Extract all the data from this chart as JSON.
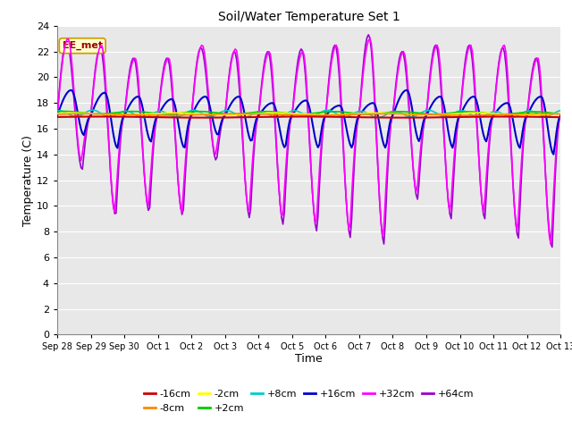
{
  "title": "Soil/Water Temperature Set 1",
  "xlabel": "Time",
  "ylabel": "Temperature (C)",
  "ylim": [
    0,
    24
  ],
  "yticks": [
    0,
    2,
    4,
    6,
    8,
    10,
    12,
    14,
    16,
    18,
    20,
    22,
    24
  ],
  "fig_bg_color": "#ffffff",
  "plot_bg_color": "#e8e8e8",
  "annotation_text": "EE_met",
  "annotation_bg": "#ffffcc",
  "annotation_border": "#cc9900",
  "annotation_text_color": "#990000",
  "series_colors": {
    "-16cm": "#cc0000",
    "-8cm": "#ff8800",
    "-2cm": "#ffff00",
    "+2cm": "#00cc00",
    "+8cm": "#00cccc",
    "+16cm": "#0000cc",
    "+32cm": "#ff00ff",
    "+64cm": "#9900cc"
  },
  "x_tick_labels": [
    "Sep 28",
    "Sep 29",
    "Sep 30",
    "Oct 1",
    "Oct 2",
    "Oct 3",
    "Oct 4",
    "Oct 5",
    "Oct 6",
    "Oct 7",
    "Oct 8",
    "Oct 9",
    "Oct 10",
    "Oct 11",
    "Oct 12",
    "Oct 13"
  ],
  "x_tick_positions": [
    0,
    1,
    2,
    3,
    4,
    5,
    6,
    7,
    8,
    9,
    10,
    11,
    12,
    13,
    14,
    15
  ]
}
